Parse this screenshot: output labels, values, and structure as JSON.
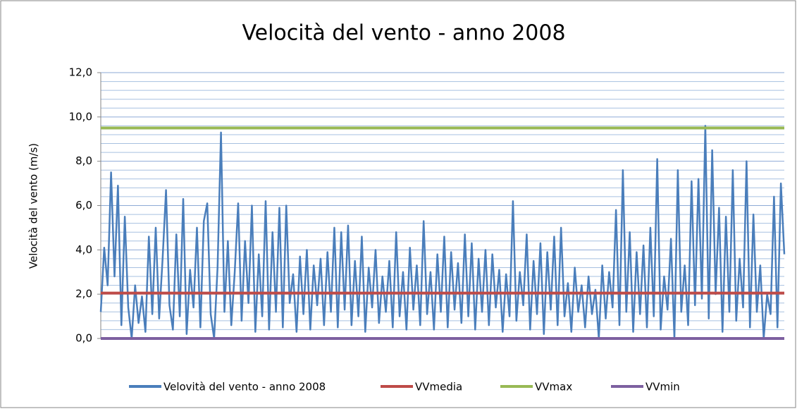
{
  "chart_data": {
    "type": "line",
    "title": "Velocità del vento - anno 2008",
    "y_label": "Velocità del vento (m/s)",
    "ylim": [
      0,
      12
    ],
    "yticks": [
      {
        "value": 0,
        "label": "0,0"
      },
      {
        "value": 2,
        "label": "2,0"
      },
      {
        "value": 4,
        "label": "4,0"
      },
      {
        "value": 6,
        "label": "6,0"
      },
      {
        "value": 8,
        "label": "8,0"
      },
      {
        "value": 10,
        "label": "10,0"
      },
      {
        "value": 12,
        "label": "12,0"
      }
    ],
    "yminorticks": [
      0.4,
      0.8,
      1.2,
      1.6,
      2.4,
      2.8,
      3.2,
      3.6,
      4.4,
      4.8,
      5.2,
      5.6,
      6.4,
      6.8,
      7.2,
      7.6,
      8.4,
      8.8,
      9.2,
      9.6,
      10.4,
      10.8,
      11.2,
      11.6
    ],
    "grid": true,
    "legend": "bottom",
    "series": [
      {
        "name": "Velovità del vento - anno 2008",
        "color": "#4a7ebb",
        "values": [
          1.2,
          4.1,
          2.4,
          7.5,
          2.8,
          6.9,
          0.6,
          5.5,
          1.4,
          0.0,
          2.4,
          0.7,
          1.9,
          0.3,
          4.6,
          1.1,
          5.0,
          0.9,
          3.6,
          6.7,
          1.5,
          0.4,
          4.7,
          1.0,
          6.3,
          0.2,
          3.1,
          1.4,
          5.0,
          0.5,
          5.3,
          6.1,
          1.1,
          0.0,
          3.2,
          9.3,
          1.2,
          4.4,
          0.6,
          3.0,
          6.1,
          0.8,
          4.4,
          1.6,
          6.0,
          0.3,
          3.8,
          1.0,
          6.2,
          0.4,
          4.8,
          1.2,
          5.9,
          0.5,
          6.0,
          1.6,
          2.9,
          0.3,
          3.7,
          1.1,
          4.0,
          0.4,
          3.3,
          1.5,
          3.6,
          0.6,
          3.9,
          1.2,
          5.0,
          0.5,
          4.8,
          1.3,
          5.1,
          0.6,
          3.5,
          1.0,
          4.6,
          0.3,
          3.2,
          1.4,
          4.0,
          0.7,
          2.8,
          1.2,
          3.5,
          0.5,
          4.8,
          1.0,
          3.0,
          0.4,
          4.1,
          1.3,
          3.3,
          0.6,
          5.3,
          1.1,
          3.0,
          0.4,
          3.8,
          1.2,
          4.6,
          0.5,
          3.9,
          1.3,
          3.4,
          0.7,
          4.7,
          1.0,
          4.3,
          0.4,
          3.6,
          1.2,
          4.0,
          0.6,
          3.8,
          1.4,
          3.1,
          0.3,
          2.9,
          1.0,
          6.2,
          0.8,
          3.0,
          1.5,
          4.7,
          0.4,
          3.5,
          1.1,
          4.3,
          0.2,
          3.9,
          1.3,
          4.6,
          0.6,
          5.0,
          1.0,
          2.5,
          0.3,
          3.2,
          1.2,
          2.4,
          0.5,
          2.8,
          1.1,
          2.2,
          0.0,
          3.3,
          0.9,
          3.0,
          1.4,
          5.8,
          0.6,
          7.6,
          1.2,
          4.8,
          0.3,
          3.9,
          1.1,
          4.2,
          0.5,
          5.0,
          1.0,
          8.1,
          0.4,
          2.8,
          1.3,
          4.5,
          0.0,
          7.6,
          1.2,
          3.3,
          0.6,
          7.1,
          1.5,
          7.2,
          1.8,
          9.6,
          0.9,
          8.5,
          2.0,
          5.9,
          0.3,
          5.5,
          1.2,
          7.6,
          0.8,
          3.6,
          1.4,
          8.0,
          0.5,
          5.6,
          1.2,
          3.3,
          0.0,
          2.0,
          1.1,
          6.4,
          0.5,
          7.0,
          3.8
        ]
      },
      {
        "name": "VVmedia",
        "color": "#be4b48",
        "value": 2.05
      },
      {
        "name": "VVmax",
        "color": "#98b954",
        "value": 9.5
      },
      {
        "name": "VVmin",
        "color": "#7d60a0",
        "value": 0
      }
    ]
  }
}
